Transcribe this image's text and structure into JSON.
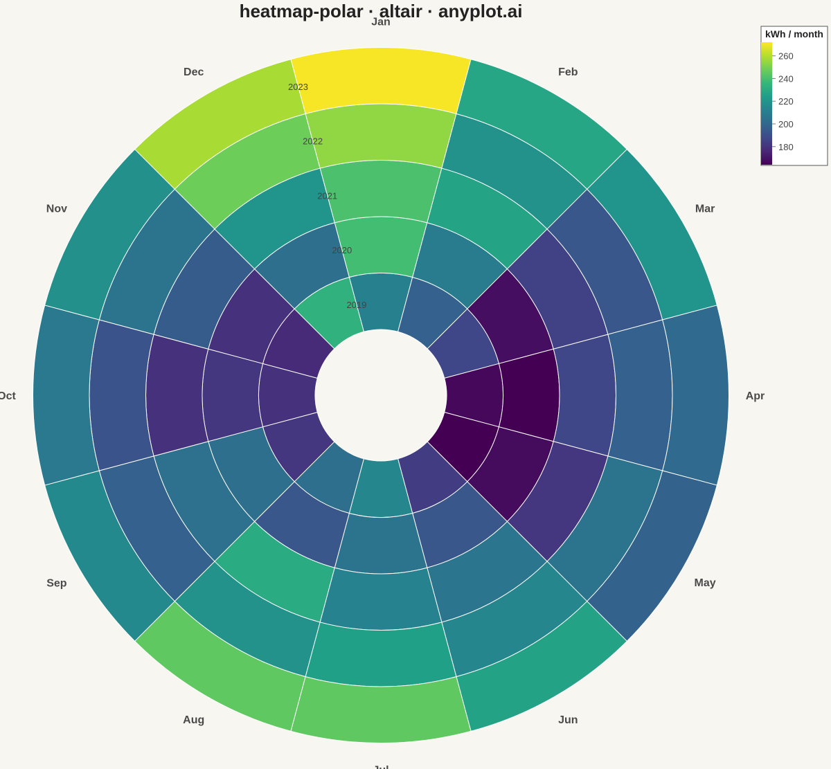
{
  "chart_data": {
    "type": "heatmap",
    "subtype": "polar",
    "title": "heatmap-polar · altair · anyplot.ai",
    "months": [
      "Jan",
      "Feb",
      "Mar",
      "Apr",
      "May",
      "Jun",
      "Jul",
      "Aug",
      "Sep",
      "Oct",
      "Nov",
      "Dec"
    ],
    "years": [
      "2019",
      "2020",
      "2021",
      "2022",
      "2023"
    ],
    "values": {
      "2019": [
        211,
        197,
        187,
        166,
        159,
        183,
        214,
        203,
        181,
        179,
        177,
        233
      ],
      "2020": [
        239,
        209,
        168,
        164,
        167,
        193,
        205,
        193,
        203,
        181,
        179,
        203
      ],
      "2021": [
        241,
        227,
        185,
        187,
        181,
        206,
        212,
        230,
        204,
        179,
        195,
        220
      ],
      "2022": [
        254,
        219,
        193,
        197,
        205,
        214,
        225,
        219,
        197,
        192,
        205,
        248
      ],
      "2023": [
        271,
        228,
        220,
        201,
        198,
        226,
        245,
        245,
        215,
        208,
        218,
        258
      ]
    },
    "color_scale": {
      "scheme": "viridis",
      "domain": [
        164,
        272
      ],
      "stops": [
        "#440154",
        "#482878",
        "#3e4a89",
        "#31688e",
        "#26828e",
        "#1f9e89",
        "#35b779",
        "#6dcd59",
        "#b4de2c",
        "#fde725"
      ]
    },
    "legend": {
      "title": "kWh / month",
      "ticks": [
        180,
        200,
        220,
        240,
        260
      ],
      "position": "top-right"
    },
    "background": "#f8f6f0"
  }
}
